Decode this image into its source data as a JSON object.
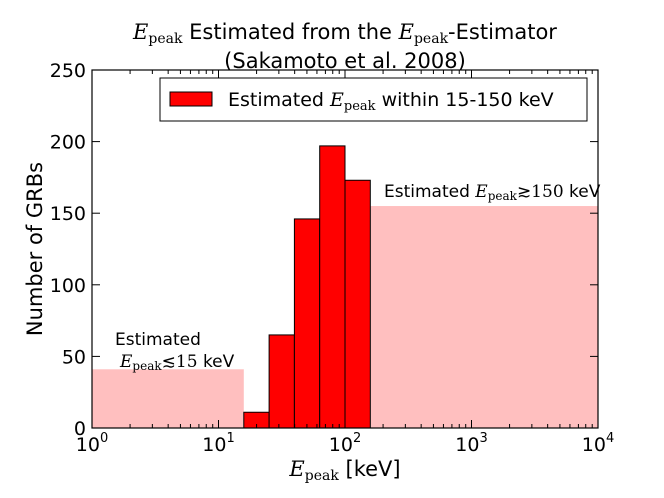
{
  "chart_data": {
    "type": "bar",
    "title_main": "Estimated from the",
    "title_var": "E",
    "title_sub": "peak",
    "title_suffix": "-Estimator",
    "subtitle": "(Sakamoto et al. 2008)",
    "xlabel_var": "E",
    "xlabel_sub": "peak",
    "xlabel_unit": "[keV]",
    "ylabel": "Number of GRBs",
    "xscale": "log",
    "xlim": [
      1,
      10000
    ],
    "ylim": [
      0,
      250
    ],
    "yticks": [
      0,
      50,
      100,
      150,
      200,
      250
    ],
    "xtick_base": "10",
    "xticks_exp": [
      "0",
      "1",
      "2",
      "3",
      "4"
    ],
    "legend": {
      "location": "upper-right",
      "label_prefix": "Estimated",
      "label_var": "E",
      "label_sub": "peak",
      "label_suffix": "within 15-150 keV",
      "color": "#ff0000"
    },
    "series": [
      {
        "name": "Estimated Epeak within 15-150 keV",
        "color": "#ff0000",
        "edge_color": "#000000",
        "bins": [
          {
            "x0": 15.85,
            "x1": 25.12,
            "value": 11
          },
          {
            "x0": 25.12,
            "x1": 39.81,
            "value": 65
          },
          {
            "x0": 39.81,
            "x1": 63.1,
            "value": 146
          },
          {
            "x0": 63.1,
            "x1": 100.0,
            "value": 197
          },
          {
            "x0": 100.0,
            "x1": 158.5,
            "value": 173
          }
        ]
      },
      {
        "name": "Estimated Epeak <~ 15 keV",
        "color": "#ffbfbf",
        "bins": [
          {
            "x0": 1,
            "x1": 15.85,
            "value": 41
          }
        ]
      },
      {
        "name": "Estimated Epeak >~ 150 keV",
        "color": "#ffbfbf",
        "bins": [
          {
            "x0": 158.5,
            "x1": 10000,
            "value": 155
          }
        ]
      }
    ],
    "annotations": {
      "low_line1": "Estimated",
      "low_var": "E",
      "low_sub": "peak",
      "low_rel": "≲15",
      "low_unit": "keV",
      "high_prefix": "Estimated",
      "high_var": "E",
      "high_sub": "peak",
      "high_rel": "≳150",
      "high_unit": "keV"
    }
  }
}
